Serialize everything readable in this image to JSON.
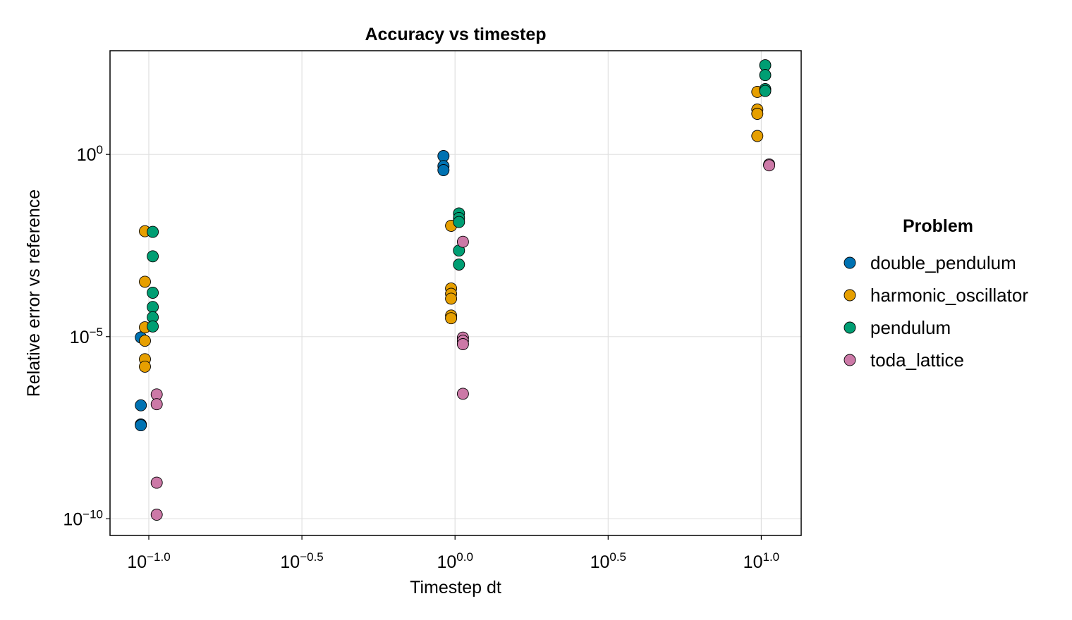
{
  "chart_data": {
    "type": "scatter",
    "title": "Accuracy vs timestep",
    "xlabel": "Timestep dt",
    "ylabel": "Relative error vs reference",
    "x_scale": "log10",
    "y_scale": "log10",
    "xlim": [
      0.0747,
      13.5
    ],
    "ylim": [
      3.5e-11,
      700
    ],
    "x_ticks": [
      {
        "value": 0.1,
        "base": "10",
        "exp": "−1.0"
      },
      {
        "value": 0.3162,
        "base": "10",
        "exp": "−0.5"
      },
      {
        "value": 1.0,
        "base": "10",
        "exp": "0.0"
      },
      {
        "value": 3.162,
        "base": "10",
        "exp": "0.5"
      },
      {
        "value": 10.0,
        "base": "10",
        "exp": "1.0"
      }
    ],
    "y_ticks": [
      {
        "value": 1e-10,
        "base": "10",
        "exp": "−10"
      },
      {
        "value": 1e-05,
        "base": "10",
        "exp": "−5"
      },
      {
        "value": 1,
        "base": "10",
        "exp": "0"
      }
    ],
    "grid": true,
    "legend_title": "Problem",
    "legend_position": "right",
    "series": [
      {
        "name": "double_pendulum",
        "color": "#0072b2",
        "points": [
          {
            "x": 0.0942,
            "y": 9.5e-06
          },
          {
            "x": 0.0942,
            "y": 1.3e-07
          },
          {
            "x": 0.0942,
            "y": 3.9e-08
          },
          {
            "x": 0.0942,
            "y": 3.7e-08
          },
          {
            "x": 0.9167,
            "y": 0.9
          },
          {
            "x": 0.9167,
            "y": 0.48
          },
          {
            "x": 0.9167,
            "y": 0.37
          }
        ]
      },
      {
        "name": "harmonic_oscillator",
        "color": "#e69f00",
        "points": [
          {
            "x": 0.0971,
            "y": 0.0078
          },
          {
            "x": 0.0971,
            "y": 0.00032
          },
          {
            "x": 0.0971,
            "y": 1.8e-05
          },
          {
            "x": 0.0971,
            "y": 7.7e-06
          },
          {
            "x": 0.0971,
            "y": 2.4e-06
          },
          {
            "x": 0.0971,
            "y": 1.5e-06
          },
          {
            "x": 0.9709,
            "y": 0.011
          },
          {
            "x": 0.9709,
            "y": 0.00021
          },
          {
            "x": 0.9709,
            "y": 0.00015
          },
          {
            "x": 0.9709,
            "y": 0.00011
          },
          {
            "x": 0.9709,
            "y": 3.8e-05
          },
          {
            "x": 0.9709,
            "y": 3.2e-05
          },
          {
            "x": 9.709,
            "y": 52
          },
          {
            "x": 9.709,
            "y": 17
          },
          {
            "x": 9.709,
            "y": 13
          },
          {
            "x": 9.709,
            "y": 3.2
          }
        ]
      },
      {
        "name": "pendulum",
        "color": "#009e73",
        "points": [
          {
            "x": 0.103,
            "y": 0.0075
          },
          {
            "x": 0.103,
            "y": 0.0016
          },
          {
            "x": 0.103,
            "y": 0.00016
          },
          {
            "x": 0.103,
            "y": 6.5e-05
          },
          {
            "x": 0.103,
            "y": 3.4e-05
          },
          {
            "x": 0.103,
            "y": 1.9e-05
          },
          {
            "x": 1.03,
            "y": 0.024
          },
          {
            "x": 1.03,
            "y": 0.018
          },
          {
            "x": 1.03,
            "y": 0.014
          },
          {
            "x": 1.03,
            "y": 0.0023
          },
          {
            "x": 1.03,
            "y": 0.00095
          },
          {
            "x": 10.3,
            "y": 280
          },
          {
            "x": 10.3,
            "y": 150
          },
          {
            "x": 10.3,
            "y": 62
          },
          {
            "x": 10.3,
            "y": 55
          }
        ]
      },
      {
        "name": "toda_lattice",
        "color": "#cc79a7",
        "points": [
          {
            "x": 0.1061,
            "y": 2.6e-07
          },
          {
            "x": 0.1061,
            "y": 1.4e-07
          },
          {
            "x": 0.1061,
            "y": 9.8e-10
          },
          {
            "x": 0.1061,
            "y": 1.3e-10
          },
          {
            "x": 1.061,
            "y": 0.004
          },
          {
            "x": 1.061,
            "y": 9.4e-06
          },
          {
            "x": 1.061,
            "y": 7.7e-06
          },
          {
            "x": 1.061,
            "y": 6.2e-06
          },
          {
            "x": 1.061,
            "y": 2.7e-07
          },
          {
            "x": 10.61,
            "y": 0.53
          },
          {
            "x": 10.61,
            "y": 0.5
          }
        ]
      }
    ]
  }
}
